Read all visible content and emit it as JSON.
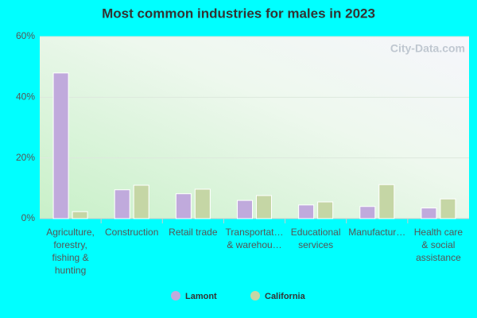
{
  "chart_data": {
    "type": "bar",
    "title": "Most common industries for males in 2023",
    "watermark": "City-Data.com",
    "categories": [
      "Agriculture,\nforestry,\nfishing &\nhunting",
      "Construction",
      "Retail trade",
      "Transportat…\n& warehou…",
      "Educational\nservices",
      "Manufactur…",
      "Health care\n& social\nassistance"
    ],
    "series": [
      {
        "name": "Lamont",
        "color": "#c0aadc",
        "values": [
          48,
          9.5,
          8.2,
          6.0,
          4.5,
          4.0,
          3.5
        ]
      },
      {
        "name": "California",
        "color": "#c5d6a5",
        "values": [
          2.3,
          11,
          9.7,
          7.6,
          5.5,
          11.2,
          6.5
        ]
      }
    ],
    "ylim": [
      0,
      60
    ],
    "yticks": [
      {
        "value": 0,
        "label": "0%"
      },
      {
        "value": 20,
        "label": "20%"
      },
      {
        "value": 40,
        "label": "40%"
      },
      {
        "value": 60,
        "label": "60%"
      }
    ],
    "grid": true,
    "legend": "bottom"
  }
}
